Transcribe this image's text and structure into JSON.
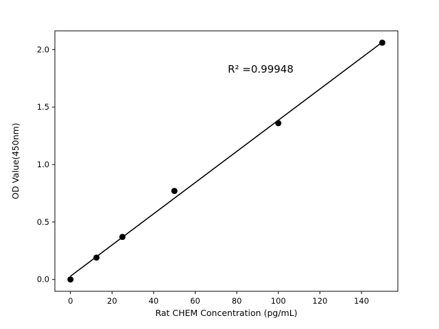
{
  "chart_data": {
    "type": "scatter",
    "x": [
      0,
      12.5,
      25,
      50,
      100,
      150
    ],
    "y": [
      0.0,
      0.19,
      0.37,
      0.77,
      1.36,
      2.06
    ],
    "fit_line": {
      "slope": 0.01357,
      "intercept": 0.0284,
      "x_start": 0,
      "x_end": 150
    },
    "annotation": {
      "text": "R² =0.99948",
      "x": 91.5,
      "y": 1.83
    },
    "title": "",
    "xlabel": "Rat CHEM Concentration (pg/mL)",
    "ylabel": "OD Value(450nm)",
    "xlim": [
      -7.5,
      157.5
    ],
    "ylim": [
      -0.103,
      2.163
    ],
    "xticks": [
      0,
      20,
      40,
      60,
      80,
      100,
      120,
      140
    ],
    "xticklabels": [
      "0",
      "20",
      "40",
      "60",
      "80",
      "100",
      "120",
      "140"
    ],
    "yticks": [
      0.0,
      0.5,
      1.0,
      1.5,
      2.0
    ],
    "yticklabels": [
      "0.0",
      "0.5",
      "1.0",
      "1.5",
      "2.0"
    ],
    "grid": false,
    "legend": "none",
    "marker_color": "#000000",
    "line_color": "#000000",
    "background": "#ffffff"
  }
}
